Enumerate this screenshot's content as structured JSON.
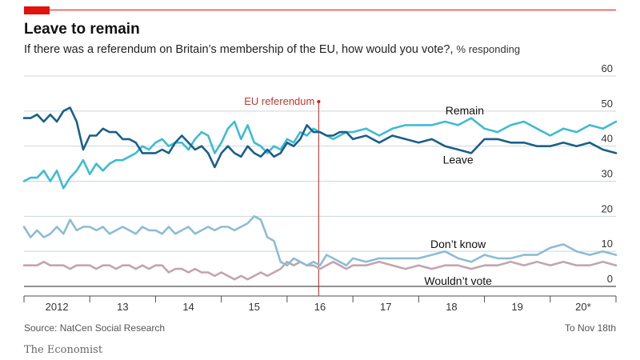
{
  "header": {
    "title": "Leave to remain",
    "subtitle": "If there was a referendum on Britain’s membership of the EU, how would you vote?,",
    "subtitle_unit": "% responding"
  },
  "footer": {
    "source": "Source: NatCen Social Research",
    "note": "To Nov 18th",
    "brand": "The Economist"
  },
  "colors": {
    "accent": "#e3120b",
    "remain": "#3ebcd2",
    "leave": "#1a5f8a",
    "dont_know": "#8dbcd6",
    "wouldnt_vote": "#c3a5ad"
  },
  "chart_data": {
    "type": "line",
    "xlim": [
      2012,
      2021
    ],
    "ylim": [
      0,
      60
    ],
    "yticks": [
      0,
      10,
      20,
      30,
      40,
      50,
      60
    ],
    "x_tick_labels": [
      "2012",
      "13",
      "14",
      "15",
      "16",
      "17",
      "18",
      "19",
      "20*"
    ],
    "grid": true,
    "annotation": {
      "label": "EU referendum",
      "x": 2016.48
    },
    "series": [
      {
        "name": "Remain",
        "color_key": "remain",
        "x": [
          2012.0,
          2012.1,
          2012.2,
          2012.3,
          2012.4,
          2012.5,
          2012.6,
          2012.7,
          2012.8,
          2012.9,
          2013.0,
          2013.1,
          2013.2,
          2013.3,
          2013.4,
          2013.5,
          2013.6,
          2013.7,
          2013.8,
          2013.9,
          2014.0,
          2014.1,
          2014.2,
          2014.3,
          2014.4,
          2014.5,
          2014.6,
          2014.7,
          2014.8,
          2014.9,
          2015.0,
          2015.1,
          2015.2,
          2015.3,
          2015.4,
          2015.5,
          2015.6,
          2015.7,
          2015.8,
          2015.9,
          2016.0,
          2016.1,
          2016.2,
          2016.3,
          2016.4,
          2016.5,
          2016.6,
          2016.7,
          2016.8,
          2016.9,
          2017.0,
          2017.2,
          2017.4,
          2017.6,
          2017.8,
          2018.0,
          2018.2,
          2018.4,
          2018.6,
          2018.8,
          2019.0,
          2019.2,
          2019.4,
          2019.6,
          2019.8,
          2020.0,
          2020.2,
          2020.4,
          2020.6,
          2020.8,
          2021.0
        ],
        "y": [
          30,
          31,
          31,
          33,
          30,
          33,
          28,
          31,
          33,
          36,
          32,
          35,
          33,
          35,
          36,
          36,
          37,
          38,
          40,
          39,
          41,
          42,
          40,
          41,
          41,
          39,
          42,
          44,
          43,
          38,
          41,
          45,
          47,
          42,
          46,
          41,
          40,
          38,
          40,
          39,
          42,
          41,
          44,
          43,
          45,
          44,
          43,
          42,
          43,
          44,
          44,
          45,
          43,
          45,
          46,
          46,
          46,
          47,
          46,
          48,
          45,
          44,
          46,
          47,
          45,
          43,
          45,
          44,
          46,
          45,
          47
        ]
      },
      {
        "name": "Leave",
        "color_key": "leave",
        "x": [
          2012.0,
          2012.1,
          2012.2,
          2012.3,
          2012.4,
          2012.5,
          2012.6,
          2012.7,
          2012.8,
          2012.9,
          2013.0,
          2013.1,
          2013.2,
          2013.3,
          2013.4,
          2013.5,
          2013.6,
          2013.7,
          2013.8,
          2013.9,
          2014.0,
          2014.1,
          2014.2,
          2014.3,
          2014.4,
          2014.5,
          2014.6,
          2014.7,
          2014.8,
          2014.9,
          2015.0,
          2015.1,
          2015.2,
          2015.3,
          2015.4,
          2015.5,
          2015.6,
          2015.7,
          2015.8,
          2015.9,
          2016.0,
          2016.1,
          2016.2,
          2016.3,
          2016.4,
          2016.5,
          2016.6,
          2016.7,
          2016.8,
          2016.9,
          2017.0,
          2017.2,
          2017.4,
          2017.6,
          2017.8,
          2018.0,
          2018.2,
          2018.4,
          2018.6,
          2018.8,
          2019.0,
          2019.2,
          2019.4,
          2019.6,
          2019.8,
          2020.0,
          2020.2,
          2020.4,
          2020.6,
          2020.8,
          2021.0
        ],
        "y": [
          48,
          48,
          49,
          47,
          49,
          47,
          50,
          51,
          47,
          39,
          43,
          43,
          45,
          44,
          44,
          42,
          42,
          41,
          38,
          38,
          38,
          39,
          38,
          41,
          43,
          41,
          39,
          40,
          38,
          34,
          38,
          40,
          38,
          37,
          40,
          38,
          37,
          39,
          37,
          38,
          41,
          40,
          42,
          46,
          44,
          44,
          43,
          43,
          44,
          44,
          42,
          43,
          41,
          43,
          42,
          41,
          42,
          40,
          39,
          38,
          42,
          42,
          41,
          41,
          40,
          40,
          41,
          40,
          41,
          39,
          38
        ]
      },
      {
        "name": "Don’t know",
        "color_key": "dont_know",
        "x": [
          2012.0,
          2012.1,
          2012.2,
          2012.3,
          2012.4,
          2012.5,
          2012.6,
          2012.7,
          2012.8,
          2012.9,
          2013.0,
          2013.1,
          2013.2,
          2013.3,
          2013.4,
          2013.5,
          2013.6,
          2013.7,
          2013.8,
          2013.9,
          2014.0,
          2014.1,
          2014.2,
          2014.3,
          2014.4,
          2014.5,
          2014.6,
          2014.7,
          2014.8,
          2014.9,
          2015.0,
          2015.1,
          2015.2,
          2015.3,
          2015.4,
          2015.5,
          2015.6,
          2015.7,
          2015.8,
          2015.9,
          2016.0,
          2016.1,
          2016.2,
          2016.3,
          2016.4,
          2016.5,
          2016.6,
          2016.7,
          2016.8,
          2016.9,
          2017.0,
          2017.2,
          2017.4,
          2017.6,
          2017.8,
          2018.0,
          2018.2,
          2018.4,
          2018.6,
          2018.8,
          2019.0,
          2019.2,
          2019.4,
          2019.6,
          2019.8,
          2020.0,
          2020.2,
          2020.4,
          2020.6,
          2020.8,
          2021.0
        ],
        "y": [
          17,
          14,
          16,
          14,
          15,
          17,
          15,
          19,
          16,
          17,
          17,
          16,
          17,
          15,
          16,
          17,
          16,
          15,
          17,
          16,
          16,
          15,
          17,
          15,
          16,
          17,
          15,
          16,
          17,
          16,
          17,
          17,
          16,
          17,
          18,
          20,
          19,
          14,
          13,
          7,
          6,
          8,
          7,
          6,
          7,
          6,
          9,
          8,
          7,
          6,
          8,
          7,
          8,
          8,
          8,
          8,
          9,
          10,
          8,
          7,
          9,
          8,
          8,
          9,
          9,
          11,
          12,
          10,
          9,
          10,
          9
        ]
      },
      {
        "name": "Wouldn’t vote",
        "color_key": "wouldnt_vote",
        "x": [
          2012.0,
          2012.1,
          2012.2,
          2012.3,
          2012.4,
          2012.5,
          2012.6,
          2012.7,
          2012.8,
          2012.9,
          2013.0,
          2013.1,
          2013.2,
          2013.3,
          2013.4,
          2013.5,
          2013.6,
          2013.7,
          2013.8,
          2013.9,
          2014.0,
          2014.1,
          2014.2,
          2014.3,
          2014.4,
          2014.5,
          2014.6,
          2014.7,
          2014.8,
          2014.9,
          2015.0,
          2015.1,
          2015.2,
          2015.3,
          2015.4,
          2015.5,
          2015.6,
          2015.7,
          2015.8,
          2015.9,
          2016.0,
          2016.1,
          2016.2,
          2016.3,
          2016.4,
          2016.5,
          2016.6,
          2016.7,
          2016.8,
          2016.9,
          2017.0,
          2017.2,
          2017.4,
          2017.6,
          2017.8,
          2018.0,
          2018.2,
          2018.4,
          2018.6,
          2018.8,
          2019.0,
          2019.2,
          2019.4,
          2019.6,
          2019.8,
          2020.0,
          2020.2,
          2020.4,
          2020.6,
          2020.8,
          2021.0
        ],
        "y": [
          6,
          6,
          6,
          7,
          6,
          6,
          6,
          5,
          6,
          6,
          6,
          5,
          6,
          6,
          5,
          6,
          6,
          5,
          6,
          5,
          6,
          6,
          4,
          5,
          5,
          4,
          5,
          4,
          4,
          3,
          4,
          3,
          2,
          3,
          2,
          3,
          4,
          3,
          4,
          5,
          7,
          6,
          7,
          6,
          6,
          5,
          6,
          7,
          6,
          5,
          6,
          6,
          7,
          6,
          5,
          6,
          5,
          6,
          6,
          5,
          6,
          6,
          7,
          6,
          7,
          6,
          7,
          6,
          6,
          7,
          6
        ]
      }
    ],
    "series_labels": [
      {
        "series": 0,
        "x": 2018.7,
        "y": 49
      },
      {
        "series": 1,
        "x": 2018.6,
        "y": 35
      },
      {
        "series": 2,
        "x": 2018.6,
        "y": 11
      },
      {
        "series": 3,
        "x": 2018.6,
        "y": 0.5
      }
    ]
  }
}
